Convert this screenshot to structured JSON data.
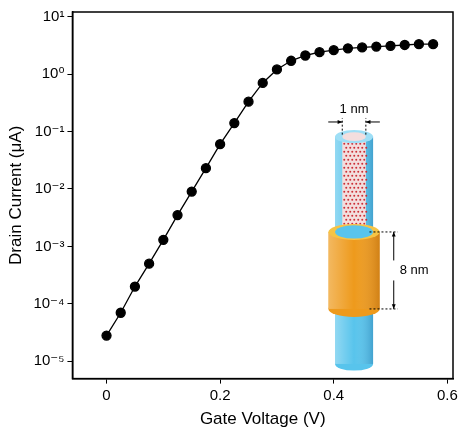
{
  "chart_data": {
    "type": "line",
    "x_label": "Gate Voltage (V)",
    "y_label": "Drain Current (μA)",
    "x": [
      0,
      0.025,
      0.05,
      0.075,
      0.1,
      0.125,
      0.15,
      0.175,
      0.2,
      0.225,
      0.25,
      0.275,
      0.3,
      0.325,
      0.35,
      0.375,
      0.4,
      0.425,
      0.45,
      0.475,
      0.5,
      0.525,
      0.55,
      0.575
    ],
    "values": [
      2.8e-05,
      7e-05,
      0.0002,
      0.0005,
      0.0013,
      0.0035,
      0.009,
      0.023,
      0.06,
      0.14,
      0.33,
      0.7,
      1.2,
      1.7,
      2.1,
      2.4,
      2.6,
      2.8,
      2.9,
      3.0,
      3.1,
      3.2,
      3.3,
      3.3
    ],
    "color": "#000000",
    "marker": "circle",
    "line_style": "solid",
    "log": "y",
    "grid": false,
    "xlim": [
      -0.06,
      0.61
    ],
    "xticks": [
      0,
      0.2,
      0.4,
      0.6
    ],
    "ylim": [
      5e-06,
      12
    ],
    "yticks": [
      {
        "value": 1e-05,
        "label": "10⁻⁵"
      },
      {
        "value": 0.0001,
        "label": "10⁻⁴"
      },
      {
        "value": 0.001,
        "label": "10⁻³"
      },
      {
        "value": 0.01,
        "label": "10⁻²"
      },
      {
        "value": 0.1,
        "label": "10⁻¹"
      },
      {
        "value": 1,
        "label": "10⁰"
      },
      {
        "value": 10,
        "label": "10¹"
      }
    ],
    "annotations": [
      "1 nm",
      "8 nm"
    ]
  }
}
